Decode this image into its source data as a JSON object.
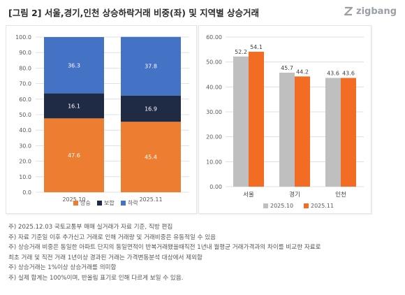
{
  "header": {
    "title": "[그림 2] 서울,경기,인천 상승하락거래 비중(좌) 및 지역별 상승거래",
    "brand": "zigbang",
    "brand_icon": "zigbang-logo-icon"
  },
  "colors": {
    "rise": "#ED7D31",
    "flat": "#1F2A44",
    "fall": "#4472C4",
    "oct": "#BFBFBF",
    "nov": "#F26C23",
    "grid": "#D9D9D9",
    "tick": "#595959"
  },
  "chart_data": [
    {
      "type": "bar",
      "stacked": true,
      "categories": [
        "2025.10",
        "2025.11"
      ],
      "series": [
        {
          "name": "상승",
          "values": [
            47.6,
            45.4
          ]
        },
        {
          "name": "보합",
          "values": [
            16.1,
            16.9
          ]
        },
        {
          "name": "하락",
          "values": [
            36.3,
            37.8
          ]
        }
      ],
      "ylim": [
        0,
        100
      ],
      "yticks": [
        "0.0",
        "10.0",
        "20.0",
        "30.0",
        "40.0",
        "50.0",
        "60.0",
        "70.0",
        "80.0",
        "90.0",
        "100.0"
      ],
      "grid": true,
      "legend": "bottom"
    },
    {
      "type": "bar",
      "categories": [
        "서울",
        "경기",
        "인천"
      ],
      "series": [
        {
          "name": "2025.10",
          "values": [
            52.2,
            45.7,
            43.6
          ]
        },
        {
          "name": "2025.11",
          "values": [
            54.1,
            44.2,
            43.6
          ]
        }
      ],
      "ylim": [
        0,
        60
      ],
      "yticks": [
        "0.00",
        "10.00",
        "20.00",
        "30.00",
        "40.00",
        "50.00",
        "60.00"
      ],
      "grid": true,
      "legend": "bottom"
    }
  ],
  "notes": [
    "주) 2025.12.03 국토교통부 매매 실거래가 자료 기준, 직방 편집",
    "주) 자료 기준일 이후 추가신고 거래로 인해 거래량 및 거래비중은 유동적일 수 있음",
    "주) 상승거래 비중은 동일한 아파트 단지의 동일면적이 반복거래됐을때직전 1년내 월평균 거래가격과의 차이를 비교한 자료로",
    "최초 거래 및 직전 거래 1년이상 경과된 거래는 가격변동분석 대상에서 제외함",
    "주) 상승거래는 1%이상 상승거래를 의미함",
    "주) 실제 합계는 100%이며, 반올림 표기로 인해 다르게 보일 수 있음."
  ]
}
